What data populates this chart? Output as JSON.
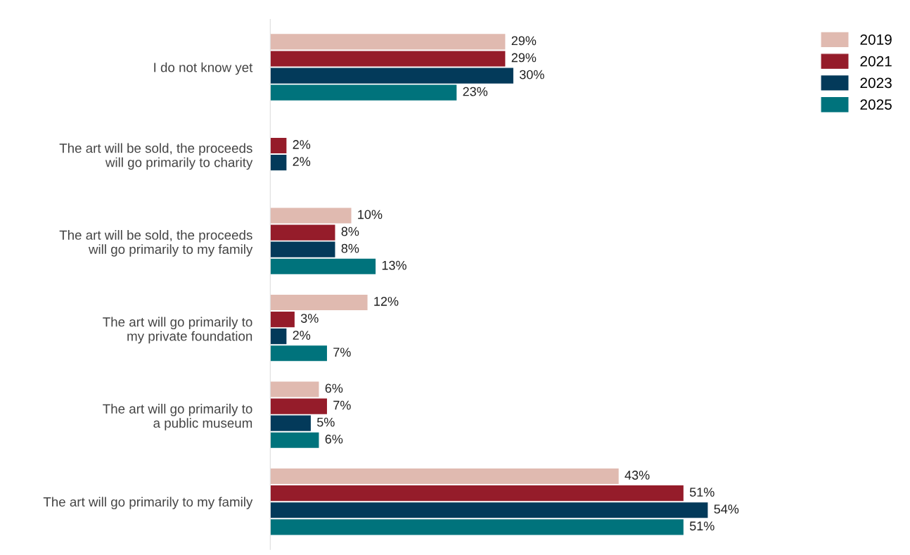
{
  "chart_data": {
    "type": "bar",
    "orientation": "horizontal",
    "legend": "top right",
    "grid": false,
    "categories": [
      "I do not know yet",
      "The art will be sold, the proceeds\nwill go primarily to charity",
      "The art will be sold, the proceeds\nwill go primarily to my family",
      "The art will go primarily to\nmy private foundation",
      "The art will go primarily to\na public museum",
      "The art will go primarily to my family"
    ],
    "series": [
      {
        "name": "2019",
        "color": "#e0bab0",
        "values": [
          29,
          null,
          10,
          12,
          6,
          43
        ],
        "value_labels": [
          "29%",
          null,
          "10%",
          "12%",
          "6%",
          "43%"
        ]
      },
      {
        "name": "2021",
        "color": "#951c2a",
        "values": [
          29,
          2,
          8,
          3,
          7,
          51
        ],
        "value_labels": [
          "29%",
          "2%",
          "8%",
          "3%",
          "7%",
          "51%"
        ]
      },
      {
        "name": "2023",
        "color": "#033a5a",
        "values": [
          30,
          2,
          8,
          2,
          5,
          54
        ],
        "value_labels": [
          "30%",
          "2%",
          "8%",
          "2%",
          "5%",
          "54%"
        ]
      },
      {
        "name": "2025",
        "color": "#00737c",
        "values": [
          23,
          null,
          13,
          7,
          6,
          51
        ],
        "value_labels": [
          "23%",
          null,
          "13%",
          "7%",
          "6%",
          "51%"
        ]
      }
    ]
  }
}
